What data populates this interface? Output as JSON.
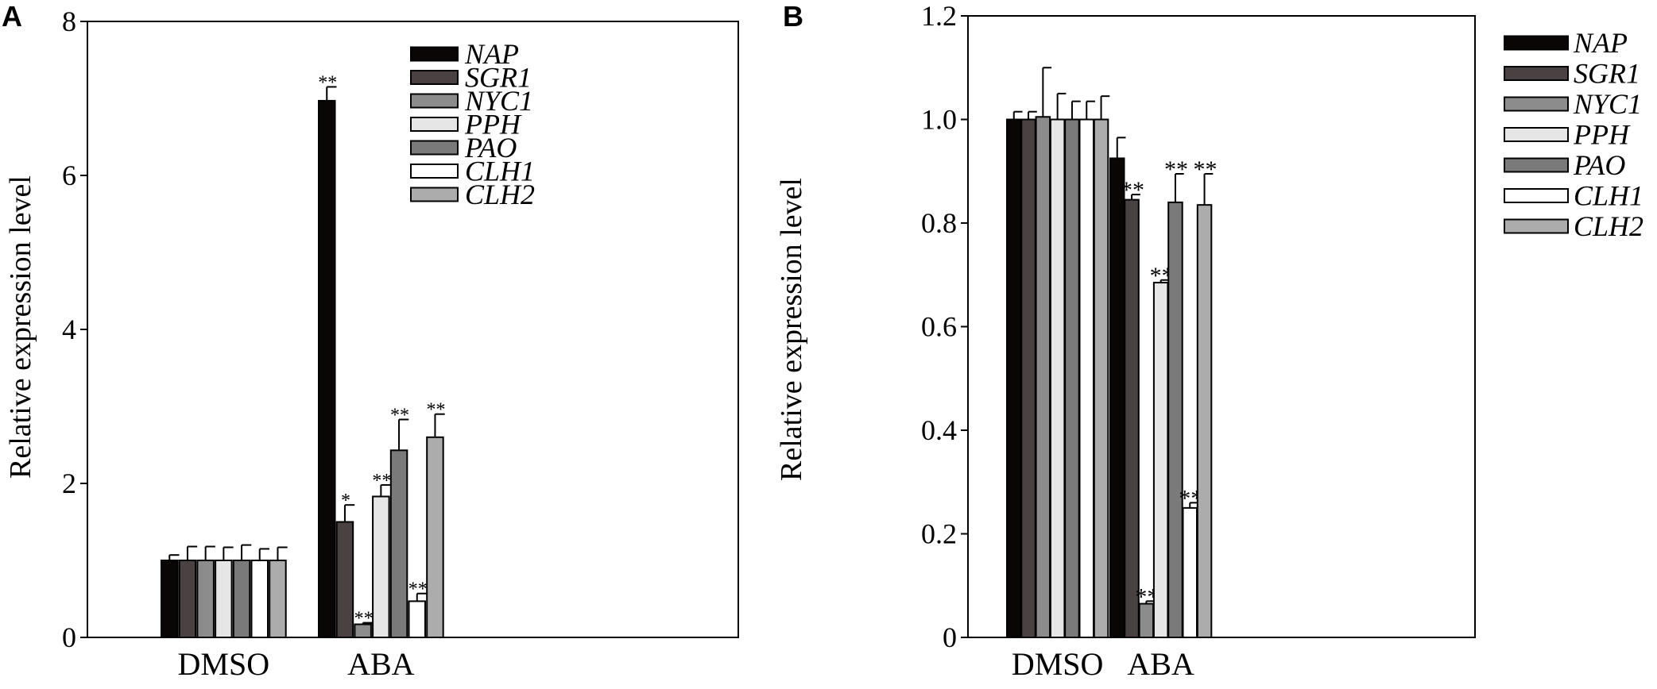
{
  "colors": {
    "NAP": "#0a0606",
    "SGR1": "#4a4242",
    "NYC1": "#8c8c8c",
    "PPH": "#e6e6e6",
    "PAO": "#7a7a7a",
    "CLH1": "#ffffff",
    "CLH2": "#acacac"
  },
  "chart_data": [
    {
      "type": "bar",
      "panel": "A",
      "ylabel": "Relative expression level",
      "xlabel": "",
      "ylim": [
        0,
        8
      ],
      "yticks": [
        "0",
        "2",
        "4",
        "6",
        "8"
      ],
      "categories": [
        "DMSO",
        "ABA"
      ],
      "legend_position": "top-right",
      "series": [
        {
          "name": "NAP",
          "values": [
            1.0,
            6.97
          ],
          "errors": [
            0.07,
            0.18
          ],
          "sig": [
            "",
            "**"
          ]
        },
        {
          "name": "SGR1",
          "values": [
            1.0,
            1.5
          ],
          "errors": [
            0.18,
            0.22
          ],
          "sig": [
            "",
            "*"
          ]
        },
        {
          "name": "NYC1",
          "values": [
            1.0,
            0.17
          ],
          "errors": [
            0.18,
            0.02
          ],
          "sig": [
            "",
            "**"
          ]
        },
        {
          "name": "PPH",
          "values": [
            1.0,
            1.83
          ],
          "errors": [
            0.17,
            0.15
          ],
          "sig": [
            "",
            "**"
          ]
        },
        {
          "name": "PAO",
          "values": [
            1.0,
            2.43
          ],
          "errors": [
            0.2,
            0.4
          ],
          "sig": [
            "",
            "**"
          ]
        },
        {
          "name": "CLH1",
          "values": [
            1.0,
            0.47
          ],
          "errors": [
            0.15,
            0.1
          ],
          "sig": [
            "",
            "**"
          ]
        },
        {
          "name": "CLH2",
          "values": [
            1.0,
            2.6
          ],
          "errors": [
            0.17,
            0.3
          ],
          "sig": [
            "",
            "**"
          ]
        }
      ]
    },
    {
      "type": "bar",
      "panel": "B",
      "ylabel": "Relative expression level",
      "xlabel": "",
      "ylim": [
        0,
        1.2
      ],
      "yticks": [
        "0",
        "0.2",
        "0.4",
        "0.6",
        "0.8",
        "1.0",
        "1.2"
      ],
      "categories": [
        "DMSO",
        "ABA"
      ],
      "legend_position": "outside-right",
      "series": [
        {
          "name": "NAP",
          "values": [
            1.0,
            0.925
          ],
          "errors": [
            0.015,
            0.04
          ],
          "sig": [
            "",
            ""
          ]
        },
        {
          "name": "SGR1",
          "values": [
            1.0,
            0.845
          ],
          "errors": [
            0.015,
            0.01
          ],
          "sig": [
            "",
            "**"
          ]
        },
        {
          "name": "NYC1",
          "values": [
            1.005,
            0.065
          ],
          "errors": [
            0.095,
            0.005
          ],
          "sig": [
            "",
            "**"
          ]
        },
        {
          "name": "PPH",
          "values": [
            1.0,
            0.685
          ],
          "errors": [
            0.05,
            0.005
          ],
          "sig": [
            "",
            "**"
          ]
        },
        {
          "name": "PAO",
          "values": [
            1.0,
            0.84
          ],
          "errors": [
            0.035,
            0.055
          ],
          "sig": [
            "",
            "**"
          ]
        },
        {
          "name": "CLH1",
          "values": [
            1.0,
            0.25
          ],
          "errors": [
            0.035,
            0.01
          ],
          "sig": [
            "",
            "**"
          ]
        },
        {
          "name": "CLH2",
          "values": [
            1.0,
            0.835
          ],
          "errors": [
            0.045,
            0.06
          ],
          "sig": [
            "",
            "**"
          ]
        }
      ]
    }
  ]
}
